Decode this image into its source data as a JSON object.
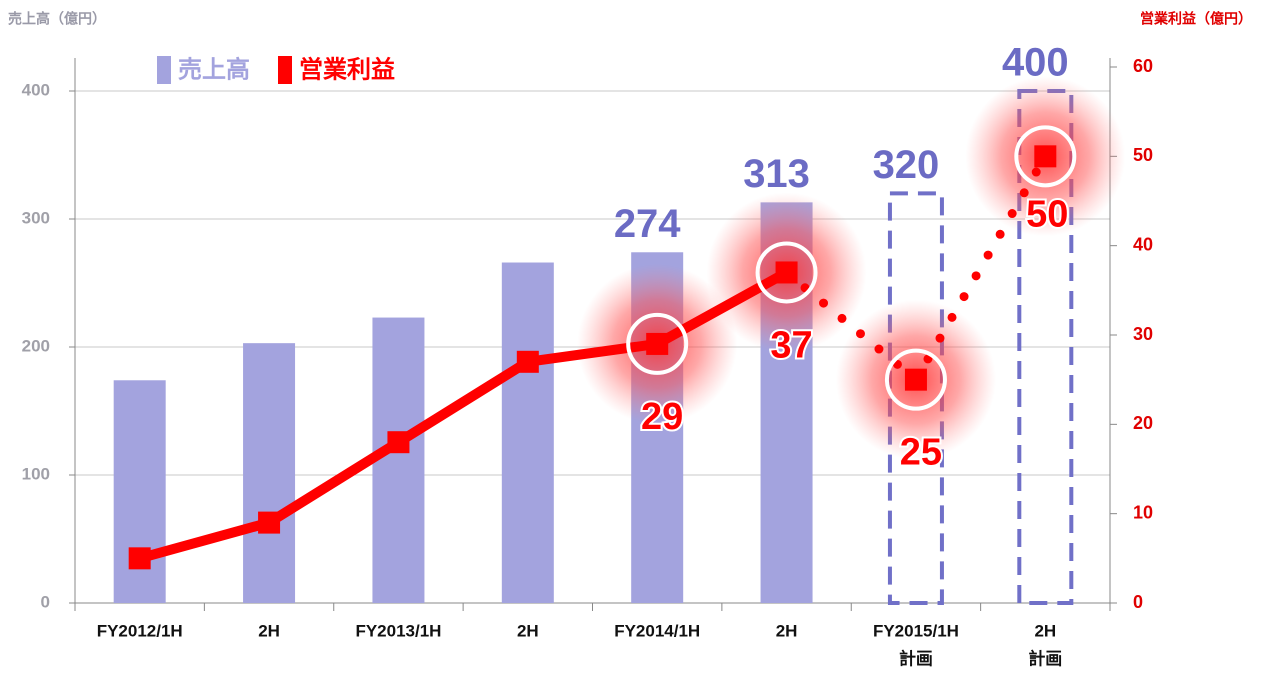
{
  "chart_data": {
    "type": "bar_line",
    "y_axis_title": "売上高（億円）",
    "y2_axis_title": "営業利益（億円）",
    "categories": [
      "FY2012/1H",
      "2H",
      "FY2013/1H",
      "2H",
      "FY2014/1H",
      "2H",
      "FY2015/1H",
      "2H"
    ],
    "category_notes": [
      null,
      null,
      null,
      null,
      null,
      null,
      "計画",
      "計画"
    ],
    "series": [
      {
        "name": "売上高",
        "color": "#a3a3de",
        "label_color": "#6b6bc4",
        "values": [
          174,
          203,
          223,
          266,
          274,
          313,
          320,
          400
        ],
        "show_value_labels": [
          false,
          false,
          false,
          false,
          true,
          true,
          true,
          true
        ]
      },
      {
        "name": "営業利益",
        "color": "#ff0000",
        "axis": "y2",
        "values": [
          5,
          9,
          18,
          27,
          29,
          37,
          25,
          50
        ],
        "show_value_labels": [
          false,
          false,
          false,
          false,
          true,
          true,
          true,
          true
        ]
      }
    ],
    "ylim": [
      0,
      400
    ],
    "yticks": [
      0,
      100,
      200,
      300,
      400
    ],
    "y2lim": [
      0,
      60
    ],
    "y2ticks": [
      0,
      10,
      20,
      30,
      40,
      50,
      60
    ],
    "grid": true,
    "legend": "top-left"
  }
}
